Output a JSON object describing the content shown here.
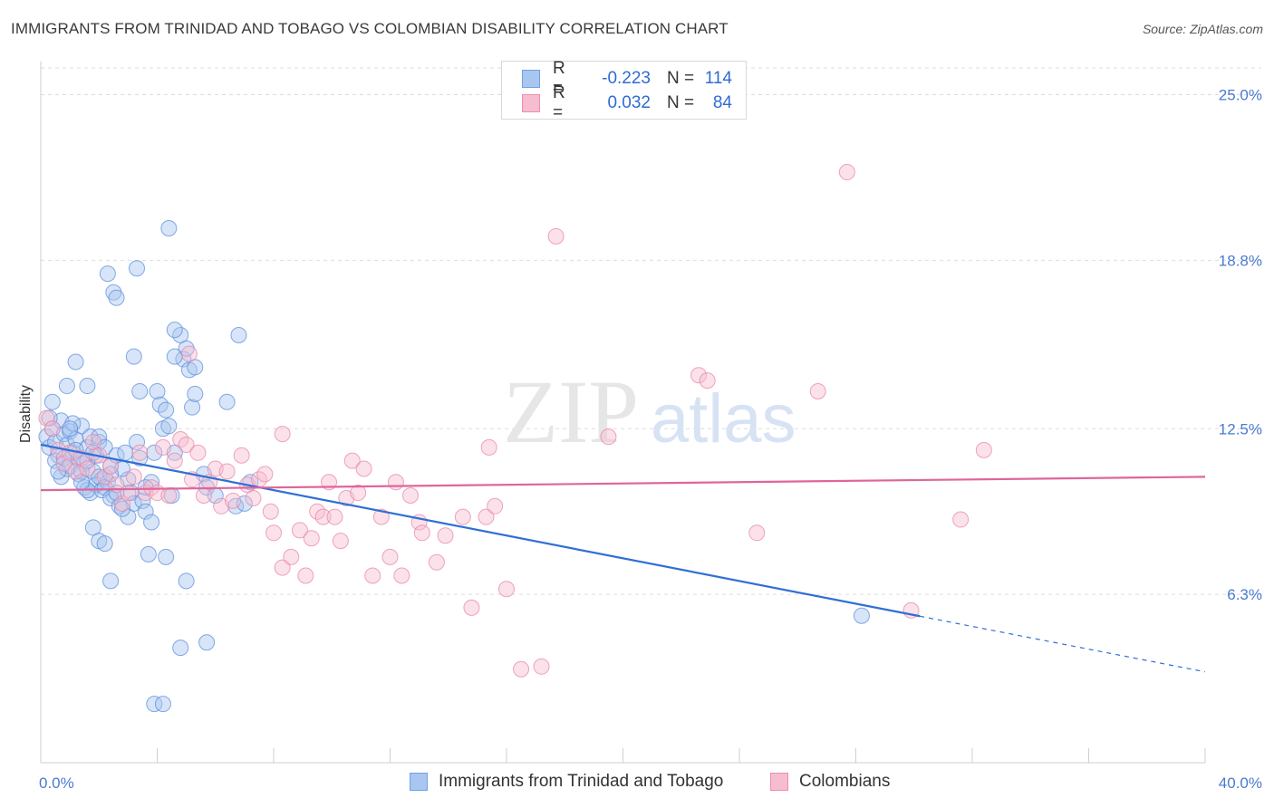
{
  "header": {
    "title": "IMMIGRANTS FROM TRINIDAD AND TOBAGO VS COLOMBIAN DISABILITY CORRELATION CHART",
    "source": "Source: ZipAtlas.com"
  },
  "watermark": {
    "part1": "ZIP",
    "part2": "atlas"
  },
  "legend_top": [
    {
      "r_label": "R =",
      "r_value": "-0.223",
      "n_label": "N =",
      "n_value": "114",
      "color": "#6fa0e8"
    },
    {
      "r_label": "R =",
      "r_value": "0.032",
      "n_label": "N =",
      "n_value": "84",
      "color": "#f08cb0"
    }
  ],
  "legend_bottom": [
    {
      "label": "Immigrants from Trinidad and Tobago",
      "color": "#6fa0e8"
    },
    {
      "label": "Colombians",
      "color": "#f08cb0"
    }
  ],
  "colors": {
    "blue_fill": "#a8c6f0",
    "blue_stroke": "#5b8fdc",
    "blue_line": "#2f6fd6",
    "pink_fill": "#f6bcd0",
    "pink_stroke": "#e887a8",
    "pink_line": "#e0659a",
    "grid": "#dddddd",
    "tick_text": "#4a7bd0"
  },
  "chart_data": {
    "type": "scatter",
    "title": "IMMIGRANTS FROM TRINIDAD AND TOBAGO VS COLOMBIAN DISABILITY CORRELATION CHART",
    "xlabel": "",
    "ylabel": "Disability",
    "xlim": [
      0,
      40
    ],
    "ylim": [
      0,
      26
    ],
    "x_tick_labels": [
      "0.0%",
      "40.0%"
    ],
    "y_ticks": [
      6.3,
      12.5,
      18.8,
      25.0
    ],
    "y_tick_labels": [
      "6.3%",
      "12.5%",
      "18.8%",
      "25.0%"
    ],
    "grid": true,
    "legend_position": "top-center",
    "series": [
      {
        "name": "Immigrants from Trinidad and Tobago",
        "r": -0.223,
        "n": 114,
        "trend": {
          "x0": 0,
          "y0": 11.9,
          "x1": 40,
          "y1": 3.4,
          "solid_until_x": 30.2
        },
        "points": [
          [
            0.2,
            12.2
          ],
          [
            0.3,
            11.8
          ],
          [
            0.4,
            12.5
          ],
          [
            0.5,
            12.0
          ],
          [
            0.6,
            11.5
          ],
          [
            0.7,
            12.8
          ],
          [
            0.8,
            12.3
          ],
          [
            0.9,
            11.9
          ],
          [
            1.0,
            12.4
          ],
          [
            1.1,
            11.6
          ],
          [
            1.2,
            12.1
          ],
          [
            1.3,
            11.4
          ],
          [
            1.4,
            12.6
          ],
          [
            1.5,
            11.2
          ],
          [
            1.6,
            11.8
          ],
          [
            1.7,
            12.2
          ],
          [
            1.8,
            10.9
          ],
          [
            1.9,
            11.5
          ],
          [
            2.0,
            12.0
          ],
          [
            2.1,
            10.6
          ],
          [
            0.3,
            12.9
          ],
          [
            0.5,
            11.3
          ],
          [
            0.7,
            10.7
          ],
          [
            0.9,
            11.0
          ],
          [
            1.1,
            12.7
          ],
          [
            1.3,
            10.8
          ],
          [
            1.5,
            10.3
          ],
          [
            1.7,
            10.1
          ],
          [
            1.9,
            10.4
          ],
          [
            2.1,
            10.2
          ],
          [
            2.3,
            10.5
          ],
          [
            2.5,
            10.0
          ],
          [
            0.4,
            13.5
          ],
          [
            0.9,
            14.1
          ],
          [
            1.2,
            15.0
          ],
          [
            1.6,
            14.1
          ],
          [
            2.0,
            12.2
          ],
          [
            2.2,
            11.8
          ],
          [
            2.4,
            11.1
          ],
          [
            2.6,
            11.5
          ],
          [
            0.8,
            11.4
          ],
          [
            1.0,
            11.1
          ],
          [
            1.2,
            11.7
          ],
          [
            1.4,
            10.9
          ],
          [
            1.6,
            11.3
          ],
          [
            1.8,
            11.6
          ],
          [
            2.0,
            10.7
          ],
          [
            2.2,
            10.3
          ],
          [
            2.4,
            9.9
          ],
          [
            2.6,
            10.1
          ],
          [
            2.9,
            11.6
          ],
          [
            3.0,
            10.6
          ],
          [
            3.1,
            10.1
          ],
          [
            3.2,
            9.7
          ],
          [
            3.3,
            12.0
          ],
          [
            3.4,
            11.4
          ],
          [
            2.8,
            11.0
          ],
          [
            3.5,
            9.8
          ],
          [
            3.6,
            9.4
          ],
          [
            2.7,
            9.6
          ],
          [
            1.8,
            8.8
          ],
          [
            2.0,
            8.3
          ],
          [
            2.2,
            8.2
          ],
          [
            3.0,
            9.2
          ],
          [
            3.8,
            10.5
          ],
          [
            3.9,
            11.6
          ],
          [
            4.0,
            13.9
          ],
          [
            3.2,
            15.2
          ],
          [
            3.4,
            13.9
          ],
          [
            4.1,
            13.4
          ],
          [
            4.2,
            12.5
          ],
          [
            4.3,
            13.2
          ],
          [
            4.4,
            12.6
          ],
          [
            4.5,
            10.0
          ],
          [
            4.6,
            11.6
          ],
          [
            4.8,
            16.0
          ],
          [
            4.9,
            15.1
          ],
          [
            5.0,
            15.5
          ],
          [
            5.1,
            14.7
          ],
          [
            5.2,
            13.3
          ],
          [
            5.3,
            13.8
          ],
          [
            4.6,
            15.2
          ],
          [
            4.6,
            16.2
          ],
          [
            2.5,
            17.6
          ],
          [
            2.6,
            17.4
          ],
          [
            2.3,
            18.3
          ],
          [
            3.3,
            18.5
          ],
          [
            4.4,
            20.0
          ],
          [
            5.6,
            10.8
          ],
          [
            5.7,
            10.3
          ],
          [
            6.4,
            13.5
          ],
          [
            5.3,
            14.8
          ],
          [
            6.0,
            10.0
          ],
          [
            6.7,
            9.6
          ],
          [
            7.0,
            9.7
          ],
          [
            7.2,
            10.5
          ],
          [
            6.8,
            16.0
          ],
          [
            3.7,
            7.8
          ],
          [
            4.3,
            7.7
          ],
          [
            5.0,
            6.8
          ],
          [
            2.4,
            6.8
          ],
          [
            5.7,
            4.5
          ],
          [
            4.8,
            4.3
          ],
          [
            3.9,
            2.2
          ],
          [
            4.2,
            2.2
          ],
          [
            1.6,
            10.2
          ],
          [
            2.8,
            9.5
          ],
          [
            3.6,
            10.3
          ],
          [
            0.6,
            10.9
          ],
          [
            1.4,
            10.5
          ],
          [
            28.2,
            5.5
          ],
          [
            1.0,
            12.5
          ],
          [
            2.4,
            10.8
          ],
          [
            3.8,
            9.0
          ]
        ]
      },
      {
        "name": "Colombians",
        "r": 0.032,
        "n": 84,
        "trend": {
          "x0": 0,
          "y0": 10.2,
          "x1": 40,
          "y1": 10.7
        },
        "points": [
          [
            0.2,
            12.9
          ],
          [
            0.4,
            12.5
          ],
          [
            0.6,
            11.7
          ],
          [
            0.8,
            11.2
          ],
          [
            1.0,
            11.6
          ],
          [
            1.2,
            10.9
          ],
          [
            1.4,
            11.4
          ],
          [
            1.6,
            11.0
          ],
          [
            1.8,
            12.0
          ],
          [
            2.0,
            11.5
          ],
          [
            2.2,
            10.7
          ],
          [
            2.4,
            11.1
          ],
          [
            2.6,
            10.4
          ],
          [
            2.8,
            9.7
          ],
          [
            3.0,
            10.1
          ],
          [
            3.2,
            10.7
          ],
          [
            3.4,
            11.6
          ],
          [
            3.6,
            10.1
          ],
          [
            3.8,
            10.3
          ],
          [
            4.0,
            10.1
          ],
          [
            4.2,
            11.8
          ],
          [
            4.4,
            10.0
          ],
          [
            4.6,
            11.3
          ],
          [
            4.8,
            12.1
          ],
          [
            5.0,
            11.9
          ],
          [
            5.2,
            10.6
          ],
          [
            5.4,
            11.6
          ],
          [
            5.6,
            10.0
          ],
          [
            5.8,
            10.5
          ],
          [
            6.0,
            11.0
          ],
          [
            6.2,
            9.6
          ],
          [
            6.4,
            10.9
          ],
          [
            6.6,
            9.8
          ],
          [
            6.9,
            11.5
          ],
          [
            7.1,
            10.4
          ],
          [
            7.3,
            9.9
          ],
          [
            7.5,
            10.6
          ],
          [
            7.7,
            10.8
          ],
          [
            7.9,
            9.4
          ],
          [
            8.0,
            8.6
          ],
          [
            8.3,
            7.3
          ],
          [
            8.6,
            7.7
          ],
          [
            8.9,
            8.7
          ],
          [
            9.1,
            7.0
          ],
          [
            9.3,
            8.4
          ],
          [
            9.5,
            9.4
          ],
          [
            9.7,
            9.2
          ],
          [
            9.9,
            10.5
          ],
          [
            10.1,
            9.2
          ],
          [
            10.3,
            8.3
          ],
          [
            10.5,
            9.9
          ],
          [
            10.7,
            11.3
          ],
          [
            10.9,
            10.1
          ],
          [
            11.1,
            11.0
          ],
          [
            11.4,
            7.0
          ],
          [
            11.7,
            9.2
          ],
          [
            12.0,
            7.7
          ],
          [
            12.2,
            10.5
          ],
          [
            12.4,
            7.0
          ],
          [
            12.7,
            10.0
          ],
          [
            13.0,
            9.0
          ],
          [
            13.1,
            8.6
          ],
          [
            13.6,
            7.5
          ],
          [
            13.9,
            8.5
          ],
          [
            14.5,
            9.2
          ],
          [
            14.8,
            5.8
          ],
          [
            15.3,
            9.2
          ],
          [
            15.6,
            9.6
          ],
          [
            15.4,
            11.8
          ],
          [
            16.0,
            6.5
          ],
          [
            16.5,
            3.5
          ],
          [
            17.2,
            3.6
          ],
          [
            17.7,
            19.7
          ],
          [
            19.5,
            12.2
          ],
          [
            22.6,
            14.5
          ],
          [
            22.9,
            14.3
          ],
          [
            24.6,
            8.6
          ],
          [
            26.7,
            13.9
          ],
          [
            27.7,
            22.1
          ],
          [
            29.9,
            5.7
          ],
          [
            31.6,
            9.1
          ],
          [
            32.4,
            11.7
          ],
          [
            5.1,
            15.3
          ],
          [
            8.3,
            12.3
          ]
        ]
      }
    ]
  }
}
